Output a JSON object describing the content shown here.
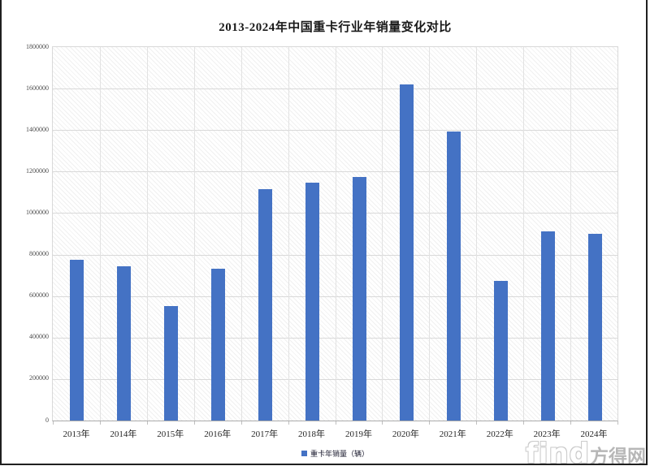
{
  "chart_data": {
    "type": "bar",
    "title": "2013-2024年中国重卡行业年销量变化对比",
    "categories": [
      "2013年",
      "2014年",
      "2015年",
      "2016年",
      "2017年",
      "2018年",
      "2019年",
      "2020年",
      "2021年",
      "2022年",
      "2023年",
      "2024年"
    ],
    "series": [
      {
        "name": "重卡年销量（辆）",
        "color": "#4472C4",
        "values": [
          774000,
          744000,
          550000,
          733000,
          1117000,
          1148000,
          1174000,
          1620000,
          1395000,
          672000,
          911000,
          902000
        ]
      }
    ],
    "xlabel": "",
    "ylabel": "",
    "ylim": [
      0,
      1800000
    ],
    "y_ticks": [
      0,
      200000,
      400000,
      600000,
      800000,
      1000000,
      1200000,
      1400000,
      1600000,
      1800000
    ],
    "grid": "horizontal-and-vertical",
    "legend_position": "bottom-center",
    "plot_background": "light-diagonal-hatch"
  },
  "legend": {
    "label": "重卡年销量（辆）",
    "marker_color": "#4472C4"
  },
  "watermark": {
    "text_latin": "find",
    "text_cjk": "方得网"
  },
  "colors": {
    "bar": "#4472C4",
    "gridline": "#d9d9d9",
    "frame_border": "#1f1f1f",
    "axis_label": "#4d4d4d"
  }
}
